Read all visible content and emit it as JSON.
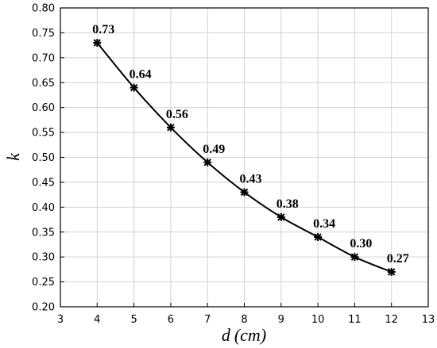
{
  "chart_data": {
    "type": "line",
    "x": [
      4,
      5,
      6,
      7,
      8,
      9,
      10,
      11,
      12
    ],
    "values": [
      0.73,
      0.64,
      0.56,
      0.49,
      0.43,
      0.38,
      0.34,
      0.3,
      0.27
    ],
    "data_labels": [
      "0.73",
      "0.64",
      "0.56",
      "0.49",
      "0.43",
      "0.38",
      "0.34",
      "0.30",
      "0.27"
    ],
    "xlim": [
      3,
      13
    ],
    "ylim": [
      0.2,
      0.8
    ],
    "x_ticks": [
      "3",
      "4",
      "5",
      "6",
      "7",
      "8",
      "9",
      "10",
      "11",
      "12",
      "13"
    ],
    "y_ticks": [
      "0.20",
      "0.25",
      "0.30",
      "0.35",
      "0.40",
      "0.45",
      "0.50",
      "0.55",
      "0.60",
      "0.65",
      "0.70",
      "0.75",
      "0.80"
    ],
    "xlabel_var": "d",
    "xlabel_unit": "(cm)",
    "ylabel": "k",
    "grid": true,
    "marker": "asterisk",
    "line_color": "#000000"
  }
}
